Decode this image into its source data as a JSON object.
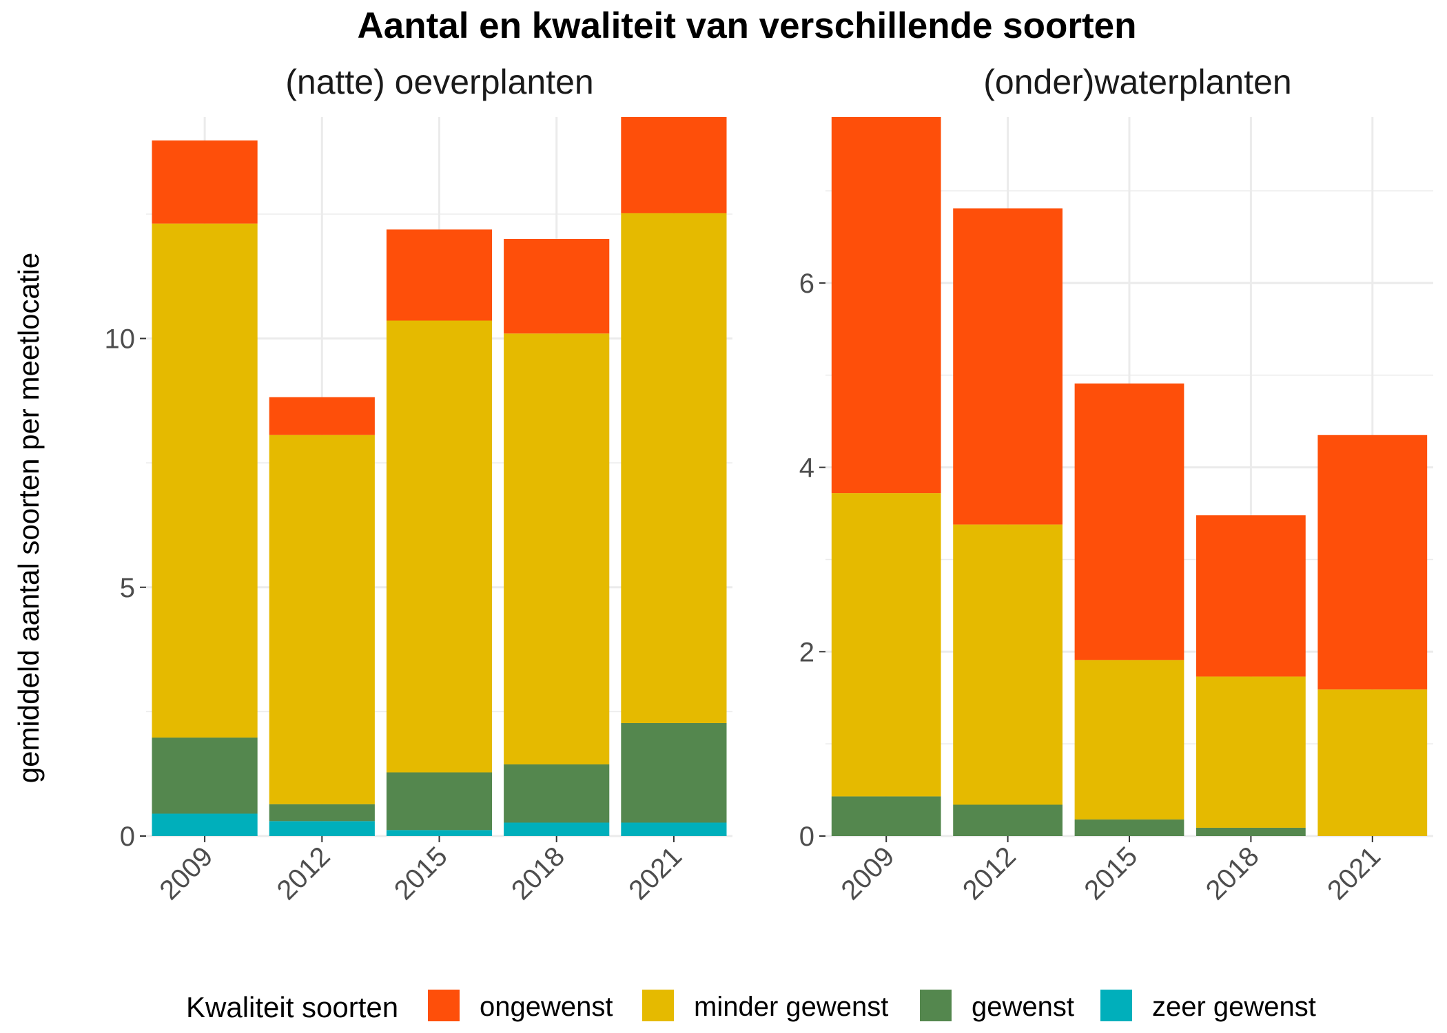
{
  "title": "Aantal en kwaliteit van verschillende soorten",
  "ylabel": "gemiddeld aantal soorten per meetlocatie",
  "legend": {
    "title": "Kwaliteit soorten",
    "position": "bottom",
    "items": [
      {
        "label": "ongewenst",
        "color": "#FE4F0A"
      },
      {
        "label": "minder gewenst",
        "color": "#E5BA00"
      },
      {
        "label": "gewenst",
        "color": "#54874E"
      },
      {
        "label": "zeer gewenst",
        "color": "#00AFBB"
      }
    ]
  },
  "chart_data": [
    {
      "type": "bar",
      "stacked": true,
      "title": "(natte) oeverplanten",
      "categories": [
        "2009",
        "2012",
        "2015",
        "2018",
        "2021"
      ],
      "ylim": [
        0,
        14.45
      ],
      "yticks": [
        0,
        5,
        10
      ],
      "grid": true,
      "series": [
        {
          "name": "zeer gewenst",
          "values": [
            0.45,
            0.3,
            0.12,
            0.27,
            0.27
          ]
        },
        {
          "name": "gewenst",
          "values": [
            1.53,
            0.34,
            1.16,
            1.17,
            2.0
          ]
        },
        {
          "name": "minder gewenst",
          "values": [
            10.33,
            7.42,
            9.08,
            8.66,
            10.25
          ]
        },
        {
          "name": "ongewenst",
          "values": [
            1.67,
            0.76,
            1.83,
            1.9,
            1.93
          ]
        }
      ]
    },
    {
      "type": "bar",
      "stacked": true,
      "title": "(onder)waterplanten",
      "categories": [
        "2009",
        "2012",
        "2015",
        "2018",
        "2021"
      ],
      "ylim": [
        0,
        7.8
      ],
      "yticks": [
        0,
        2,
        4,
        6
      ],
      "grid": true,
      "series": [
        {
          "name": "zeer gewenst",
          "values": [
            0,
            0,
            0,
            0,
            0
          ]
        },
        {
          "name": "gewenst",
          "values": [
            0.43,
            0.34,
            0.18,
            0.09,
            0
          ]
        },
        {
          "name": "minder gewenst",
          "values": [
            3.29,
            3.04,
            1.73,
            1.64,
            1.59
          ]
        },
        {
          "name": "ongewenst",
          "values": [
            4.08,
            3.43,
            3.0,
            1.75,
            2.76
          ]
        }
      ]
    }
  ]
}
